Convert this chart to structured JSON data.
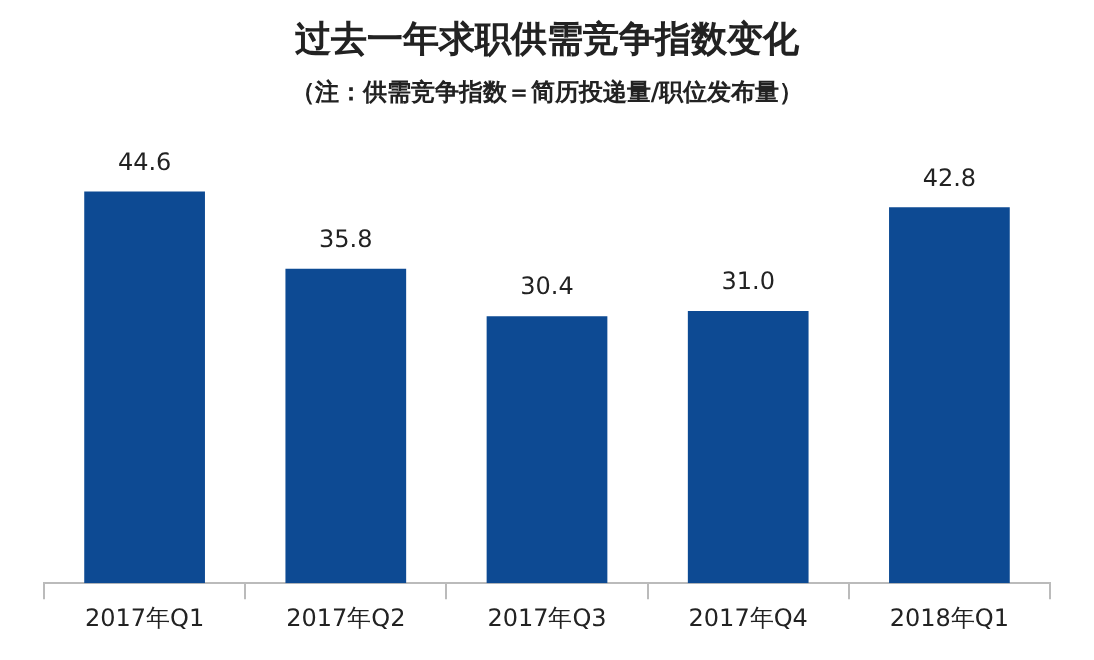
{
  "chart_data": {
    "type": "bar",
    "title": "过去一年求职供需竞争指数变化",
    "subtitle": "（注：供需竞争指数＝简历投递量/职位发布量）",
    "categories": [
      "2017年Q1",
      "2017年Q2",
      "2017年Q3",
      "2017年Q4",
      "2018年Q1"
    ],
    "values": [
      44.6,
      35.8,
      30.4,
      31.0,
      42.8
    ],
    "value_labels": [
      "44.6",
      "35.8",
      "30.4",
      "31.0",
      "42.8"
    ],
    "color": "#0d4a93",
    "grid": false,
    "legend": false
  }
}
